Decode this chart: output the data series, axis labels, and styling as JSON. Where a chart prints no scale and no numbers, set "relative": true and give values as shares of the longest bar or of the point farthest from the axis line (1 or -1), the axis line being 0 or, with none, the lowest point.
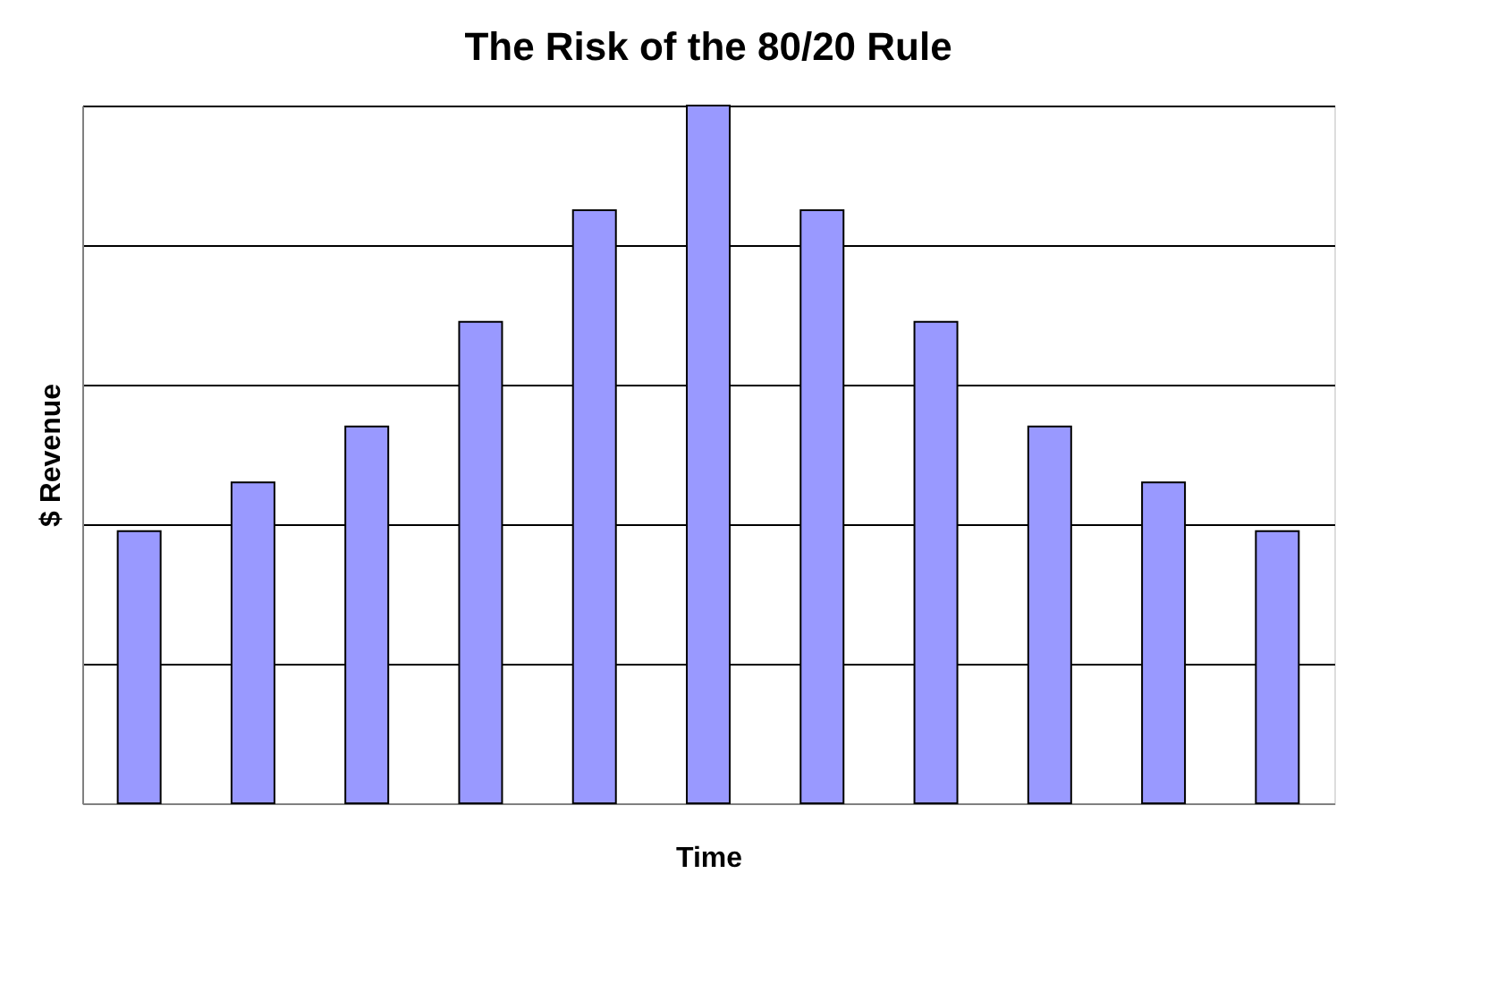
{
  "chart_data": {
    "type": "bar",
    "title": "The Risk of the 80/20 Rule",
    "xlabel": "Time",
    "ylabel": "$ Revenue",
    "categories": [
      null,
      null,
      null,
      null,
      null,
      null,
      null,
      null,
      null,
      null,
      null
    ],
    "values": [
      0.39,
      0.46,
      0.54,
      0.69,
      0.85,
      1,
      0.85,
      0.69,
      0.54,
      0.46,
      0.39
    ],
    "color": "#9999ff",
    "relative": true,
    "grid": "y"
  }
}
